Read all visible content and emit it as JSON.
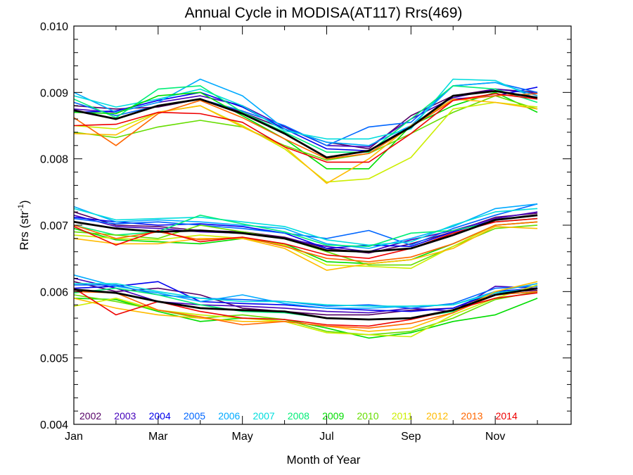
{
  "chart_data": {
    "type": "line",
    "title": "Annual Cycle in MODISA(AT117) Rrs(469)",
    "xlabel": "Month of Year",
    "ylabel_main": "Rrs (str",
    "ylabel_sup": "-1",
    "ylabel_close": ")",
    "xlim": [
      1,
      12.8
    ],
    "ylim": [
      0.004,
      0.01
    ],
    "x_ticks": [
      1,
      3,
      5,
      7,
      9,
      11
    ],
    "x_tick_labels": [
      "Jan",
      "Mar",
      "May",
      "Jul",
      "Sep",
      "Nov"
    ],
    "x_minor_ticks": [
      2,
      4,
      6,
      8,
      10,
      12
    ],
    "y_ticks": [
      0.004,
      0.005,
      0.006,
      0.007,
      0.008,
      0.009,
      0.01
    ],
    "y_tick_labels": [
      "0.004",
      "0.005",
      "0.006",
      "0.007",
      "0.008",
      "0.009",
      "0.010"
    ],
    "y_minor_step": 0.0002,
    "grid": false,
    "legend_position": "bottom-left",
    "x": [
      1,
      2,
      3,
      4,
      5,
      6,
      7,
      8,
      9,
      10,
      11,
      12
    ],
    "groups": [
      {
        "series": [
          {
            "name": "2002",
            "color": "#550066",
            "values": [
              0.0088,
              0.00875,
              0.00878,
              0.0089,
              0.0087,
              0.00845,
              0.00825,
              0.00815,
              0.00865,
              0.00895,
              0.00905,
              0.009
            ]
          },
          {
            "name": "2003",
            "color": "#4400bb",
            "values": [
              0.00875,
              0.0087,
              0.00885,
              0.00895,
              0.0088,
              0.00848,
              0.0082,
              0.00818,
              0.0086,
              0.00892,
              0.00905,
              0.00898
            ]
          },
          {
            "name": "2004",
            "color": "#0000ee",
            "values": [
              0.0087,
              0.00872,
              0.00888,
              0.009,
              0.00878,
              0.00845,
              0.00815,
              0.00812,
              0.0085,
              0.0089,
              0.00895,
              0.00908
            ]
          },
          {
            "name": "2005",
            "color": "#0066ff",
            "values": [
              0.00885,
              0.00865,
              0.0088,
              0.0089,
              0.00872,
              0.0085,
              0.0082,
              0.00848,
              0.00855,
              0.0091,
              0.00915,
              0.009
            ]
          },
          {
            "name": "2006",
            "color": "#00aaff",
            "values": [
              0.009,
              0.0087,
              0.00885,
              0.0092,
              0.00895,
              0.00845,
              0.00825,
              0.0082,
              0.0085,
              0.0091,
              0.00915,
              0.00895
            ]
          },
          {
            "name": "2007",
            "color": "#00dddd",
            "values": [
              0.00895,
              0.00878,
              0.0089,
              0.00905,
              0.0088,
              0.00842,
              0.0083,
              0.0083,
              0.00845,
              0.0092,
              0.00918,
              0.0089
            ]
          },
          {
            "name": "2008",
            "color": "#00ee77",
            "values": [
              0.0089,
              0.00862,
              0.00905,
              0.0091,
              0.0087,
              0.0084,
              0.0081,
              0.0081,
              0.0086,
              0.0091,
              0.00905,
              0.00885
            ]
          },
          {
            "name": "2009",
            "color": "#00dd00",
            "values": [
              0.0087,
              0.00868,
              0.00895,
              0.009,
              0.00865,
              0.0083,
              0.00785,
              0.00785,
              0.0085,
              0.0088,
              0.009,
              0.0087
            ]
          },
          {
            "name": "2010",
            "color": "#66dd00",
            "values": [
              0.0084,
              0.00832,
              0.00848,
              0.00858,
              0.00848,
              0.0082,
              0.00798,
              0.00808,
              0.00838,
              0.0087,
              0.00895,
              0.00875
            ]
          },
          {
            "name": "2011",
            "color": "#ccee00",
            "values": [
              0.0085,
              0.00845,
              0.0087,
              0.0088,
              0.0085,
              0.00815,
              0.00765,
              0.0077,
              0.00802,
              0.00875,
              0.00885,
              0.00878
            ]
          },
          {
            "name": "2012",
            "color": "#ffbb00",
            "values": [
              0.00838,
              0.00836,
              0.0087,
              0.0088,
              0.00848,
              0.00818,
              0.00763,
              0.008,
              0.0085,
              0.0089,
              0.00885,
              0.00875
            ]
          },
          {
            "name": "2013",
            "color": "#ff6600",
            "values": [
              0.00862,
              0.0082,
              0.00868,
              0.00888,
              0.00862,
              0.0083,
              0.008,
              0.00808,
              0.00848,
              0.00888,
              0.00895,
              0.00898
            ]
          },
          {
            "name": "2014",
            "color": "#ee0000",
            "values": [
              0.0085,
              0.00852,
              0.0087,
              0.00868,
              0.00855,
              0.00818,
              0.00795,
              0.00795,
              0.00838,
              0.00888,
              0.00898,
              0.0089
            ]
          }
        ],
        "mean": [
          0.00873,
          0.0086,
          0.0088,
          0.0089,
          0.00868,
          0.00838,
          0.00802,
          0.00812,
          0.00848,
          0.00895,
          0.00902,
          0.00892
        ]
      },
      {
        "series": [
          {
            "name": "2002",
            "color": "#550066",
            "values": [
              0.0072,
              0.007,
              0.00698,
              0.00692,
              0.0069,
              0.00682,
              0.00665,
              0.00658,
              0.00672,
              0.0069,
              0.00712,
              0.00718
            ]
          },
          {
            "name": "2003",
            "color": "#4400bb",
            "values": [
              0.00715,
              0.00698,
              0.00695,
              0.0069,
              0.00688,
              0.0068,
              0.00668,
              0.0066,
              0.00678,
              0.00692,
              0.0071,
              0.0072
            ]
          },
          {
            "name": "2004",
            "color": "#0000ee",
            "values": [
              0.00712,
              0.00705,
              0.007,
              0.00702,
              0.00698,
              0.00688,
              0.00665,
              0.0067,
              0.00668,
              0.0069,
              0.00708,
              0.00715
            ]
          },
          {
            "name": "2005",
            "color": "#0066ff",
            "values": [
              0.0071,
              0.00702,
              0.00705,
              0.007,
              0.00695,
              0.00688,
              0.0068,
              0.00692,
              0.0067,
              0.00695,
              0.00715,
              0.00732
            ]
          },
          {
            "name": "2006",
            "color": "#00aaff",
            "values": [
              0.00728,
              0.00705,
              0.00708,
              0.00705,
              0.007,
              0.00695,
              0.00672,
              0.00665,
              0.0068,
              0.00698,
              0.00725,
              0.00732
            ]
          },
          {
            "name": "2007",
            "color": "#00dddd",
            "values": [
              0.00725,
              0.00708,
              0.0071,
              0.00712,
              0.00705,
              0.00698,
              0.00678,
              0.0067,
              0.00675,
              0.007,
              0.0072,
              0.00725
            ]
          },
          {
            "name": "2008",
            "color": "#00ee77",
            "values": [
              0.007,
              0.00685,
              0.0069,
              0.00715,
              0.00702,
              0.0069,
              0.0067,
              0.00668,
              0.00688,
              0.00692,
              0.00705,
              0.0071
            ]
          },
          {
            "name": "2009",
            "color": "#00dd00",
            "values": [
              0.00695,
              0.00678,
              0.00675,
              0.00672,
              0.0068,
              0.00672,
              0.00645,
              0.00642,
              0.00648,
              0.00672,
              0.007,
              0.00705
            ]
          },
          {
            "name": "2010",
            "color": "#66dd00",
            "values": [
              0.0069,
              0.00685,
              0.0068,
              0.007,
              0.0069,
              0.0068,
              0.0066,
              0.0064,
              0.0064,
              0.00668,
              0.00695,
              0.007
            ]
          },
          {
            "name": "2011",
            "color": "#ccee00",
            "values": [
              0.00685,
              0.0068,
              0.00678,
              0.00685,
              0.0068,
              0.0067,
              0.0064,
              0.00638,
              0.00635,
              0.00668,
              0.007,
              0.00705
            ]
          },
          {
            "name": "2012",
            "color": "#ffbb00",
            "values": [
              0.0068,
              0.00672,
              0.00672,
              0.0068,
              0.0068,
              0.00665,
              0.00632,
              0.00642,
              0.00648,
              0.00665,
              0.00698,
              0.00695
            ]
          },
          {
            "name": "2013",
            "color": "#ff6600",
            "values": [
              0.007,
              0.0068,
              0.0069,
              0.00678,
              0.00682,
              0.00668,
              0.0065,
              0.00645,
              0.00652,
              0.00672,
              0.007,
              0.00705
            ]
          },
          {
            "name": "2014",
            "color": "#ee0000",
            "values": [
              0.00698,
              0.0067,
              0.00692,
              0.00675,
              0.00682,
              0.00672,
              0.00655,
              0.0065,
              0.00665,
              0.00688,
              0.00705,
              0.0071
            ]
          }
        ],
        "mean": [
          0.00705,
          0.00695,
          0.0069,
          0.00692,
          0.00688,
          0.0068,
          0.00662,
          0.0066,
          0.00665,
          0.00685,
          0.00708,
          0.00715
        ]
      },
      {
        "series": [
          {
            "name": "2002",
            "color": "#550066",
            "values": [
              0.00615,
              0.006,
              0.00605,
              0.00595,
              0.00575,
              0.0057,
              0.00565,
              0.00565,
              0.00572,
              0.00575,
              0.00598,
              0.00602
            ]
          },
          {
            "name": "2003",
            "color": "#4400bb",
            "values": [
              0.0062,
              0.00605,
              0.00585,
              0.0058,
              0.00578,
              0.00575,
              0.0057,
              0.00568,
              0.00575,
              0.0057,
              0.00608,
              0.00605
            ]
          },
          {
            "name": "2004",
            "color": "#0000ee",
            "values": [
              0.00605,
              0.00608,
              0.00615,
              0.00585,
              0.00582,
              0.0058,
              0.00575,
              0.00572,
              0.0057,
              0.00575,
              0.006,
              0.00605
            ]
          },
          {
            "name": "2005",
            "color": "#0066ff",
            "values": [
              0.0061,
              0.0061,
              0.00595,
              0.0059,
              0.00588,
              0.00585,
              0.00578,
              0.0058,
              0.00575,
              0.00582,
              0.00605,
              0.00608
            ]
          },
          {
            "name": "2006",
            "color": "#00aaff",
            "values": [
              0.00625,
              0.00608,
              0.00598,
              0.00585,
              0.00595,
              0.00582,
              0.00575,
              0.00575,
              0.00578,
              0.0058,
              0.006,
              0.00612
            ]
          },
          {
            "name": "2007",
            "color": "#00dddd",
            "values": [
              0.00612,
              0.00612,
              0.006,
              0.0059,
              0.00585,
              0.00585,
              0.0058,
              0.00578,
              0.00578,
              0.0058,
              0.00598,
              0.00605
            ]
          },
          {
            "name": "2008",
            "color": "#00ee77",
            "values": [
              0.00598,
              0.00605,
              0.00595,
              0.0058,
              0.0057,
              0.00568,
              0.0056,
              0.00558,
              0.0056,
              0.0057,
              0.00595,
              0.006
            ]
          },
          {
            "name": "2009",
            "color": "#00dd00",
            "values": [
              0.0059,
              0.00588,
              0.0057,
              0.00555,
              0.0056,
              0.00558,
              0.00545,
              0.0053,
              0.00538,
              0.00555,
              0.00565,
              0.0059
            ]
          },
          {
            "name": "2010",
            "color": "#66dd00",
            "values": [
              0.00595,
              0.00585,
              0.00572,
              0.0056,
              0.00565,
              0.00558,
              0.0054,
              0.00535,
              0.0054,
              0.0056,
              0.00588,
              0.006
            ]
          },
          {
            "name": "2011",
            "color": "#ccee00",
            "values": [
              0.00578,
              0.0059,
              0.00572,
              0.00565,
              0.0056,
              0.00555,
              0.00538,
              0.00535,
              0.00532,
              0.00565,
              0.0059,
              0.0061
            ]
          },
          {
            "name": "2012",
            "color": "#ffbb00",
            "values": [
              0.0059,
              0.00575,
              0.00565,
              0.0056,
              0.00555,
              0.00555,
              0.00548,
              0.0054,
              0.00545,
              0.00568,
              0.006,
              0.00615
            ]
          },
          {
            "name": "2013",
            "color": "#ff6600",
            "values": [
              0.006,
              0.00598,
              0.00572,
              0.00562,
              0.0055,
              0.00555,
              0.00548,
              0.00545,
              0.00552,
              0.00568,
              0.00595,
              0.006
            ]
          },
          {
            "name": "2014",
            "color": "#ee0000",
            "values": [
              0.00605,
              0.00565,
              0.00585,
              0.0057,
              0.0056,
              0.00558,
              0.0055,
              0.00548,
              0.00558,
              0.00572,
              0.0059,
              0.00598
            ]
          }
        ],
        "mean": [
          0.00603,
          0.00598,
          0.00585,
          0.00575,
          0.00572,
          0.0057,
          0.0056,
          0.00558,
          0.0056,
          0.00572,
          0.00595,
          0.00605
        ]
      }
    ],
    "legend": [
      {
        "name": "2002",
        "color": "#550066"
      },
      {
        "name": "2003",
        "color": "#4400bb"
      },
      {
        "name": "2004",
        "color": "#0000ee"
      },
      {
        "name": "2005",
        "color": "#0066ff"
      },
      {
        "name": "2006",
        "color": "#00aaff"
      },
      {
        "name": "2007",
        "color": "#00dddd"
      },
      {
        "name": "2008",
        "color": "#00ee77"
      },
      {
        "name": "2009",
        "color": "#00dd00"
      },
      {
        "name": "2010",
        "color": "#66dd00"
      },
      {
        "name": "2011",
        "color": "#ccee00"
      },
      {
        "name": "2012",
        "color": "#ffbb00"
      },
      {
        "name": "2013",
        "color": "#ff6600"
      },
      {
        "name": "2014",
        "color": "#ee0000"
      }
    ],
    "mean_color": "#000000"
  }
}
